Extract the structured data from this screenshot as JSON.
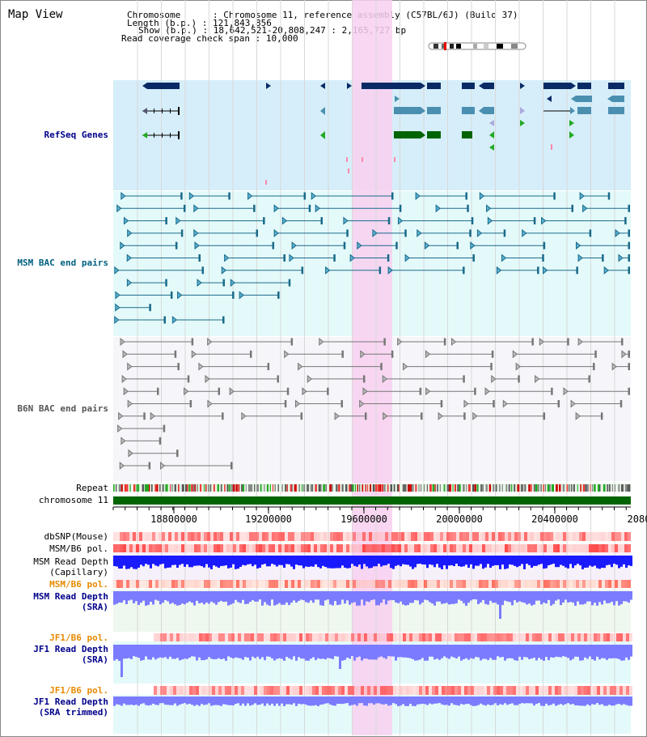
{
  "title": "Map View",
  "info": {
    "chromosome_label": "Chromosome",
    "chromosome_value": "Chromosome 11, reference assembly (C57BL/6J) (Build 37)",
    "length_label": "Length (b.p.)",
    "length_value": "121,843,856",
    "show_label": "Show (b.p.)",
    "show_value": "18,642,521-20,808,247 : 2,165,727 bp",
    "coverage_label": "Read coverage check span",
    "coverage_value": "10,000"
  },
  "tracks": {
    "refseq": "RefSeq Genes",
    "msm_bac": "MSM BAC end pairs",
    "b6n_bac": "B6N BAC end pairs",
    "repeat": "Repeat",
    "chromosome": "chromosome 11",
    "dbsnp": "dbSNP(Mouse)",
    "msm_pol": "MSM/B6 pol.",
    "msm_depth_cap_1": "MSM Read Depth",
    "msm_depth_cap_2": "(Capillary)",
    "msm_pol_2": "MSM/B6 pol.",
    "msm_depth_sra_1": "MSM Read Depth",
    "msm_depth_sra_2": "(SRA)",
    "jf1_pol": "JF1/B6 pol.",
    "jf1_depth_sra_1": "JF1 Read Depth",
    "jf1_depth_sra_2": "(SRA)",
    "jf1_pol_2": "JF1/B6 pol.",
    "jf1_depth_trim_1": "JF1 Read Depth",
    "jf1_depth_trim_2": "(SRA trimmed)"
  },
  "axis": {
    "ticks": [
      "18800000",
      "19200000",
      "19600000",
      "20000000",
      "20400000",
      "2080"
    ]
  },
  "colors": {
    "refseq_bg": "#d6eefa",
    "msm_bg": "#e4fafa",
    "b6n_bg": "#f6f6fa",
    "highlight": "#f8d0f0",
    "chromosome_bar": "#006400",
    "depth_blue": "#1a1aff",
    "depth_light": "#7b7bff"
  }
}
